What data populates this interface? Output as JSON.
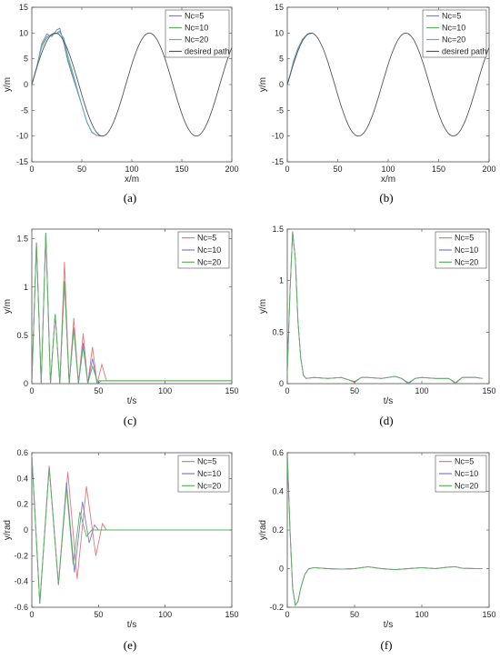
{
  "chart_data": [
    {
      "id": "a",
      "caption": "(a)",
      "type": "line",
      "xlabel": "x/m",
      "ylabel": "y/m",
      "xlim": [
        0,
        200
      ],
      "ylim": [
        -15,
        15
      ],
      "xticks": [
        0,
        50,
        100,
        150,
        200
      ],
      "yticks": [
        -15,
        -10,
        -5,
        0,
        5,
        10,
        15
      ],
      "legend_position": "top-right",
      "series": [
        {
          "name": "Nc=5",
          "color": "#7b7bd9",
          "x": [
            0,
            5,
            10,
            15,
            20,
            25,
            28,
            32,
            36,
            40,
            45,
            50,
            55,
            60,
            65,
            70
          ],
          "y": [
            0,
            3.5,
            8.0,
            9.8,
            9.3,
            10.6,
            10.9,
            8.0,
            4.5,
            2.0,
            -1.0,
            -4.0,
            -7.2,
            -9.2,
            -9.9,
            -10.0
          ]
        },
        {
          "name": "Nc=10",
          "color": "#5db35d",
          "x": [
            0,
            5,
            10,
            15,
            20,
            25,
            28,
            32,
            36,
            40,
            45,
            50,
            55,
            60,
            65,
            70
          ],
          "y": [
            0,
            3.5,
            7.6,
            9.3,
            9.6,
            10.0,
            10.4,
            8.6,
            5.0,
            2.5,
            -0.8,
            -4.0,
            -7.3,
            -9.3,
            -9.9,
            -10.0
          ]
        },
        {
          "name": "Nc=20",
          "color": "#66a8e0",
          "x": [
            0,
            5,
            10,
            15,
            20,
            25,
            28,
            32,
            36,
            40,
            45,
            50,
            55,
            60,
            65,
            70
          ],
          "y": [
            0,
            3.4,
            7.3,
            9.0,
            9.8,
            9.9,
            10.1,
            9.0,
            5.7,
            3.0,
            -0.5,
            -4.0,
            -7.2,
            -9.3,
            -9.9,
            -10.0
          ]
        },
        {
          "name": "desired path",
          "color": "#555555",
          "function": "sine",
          "amplitude": 10,
          "period": 94,
          "x_range": [
            0,
            200
          ]
        }
      ]
    },
    {
      "id": "b",
      "caption": "(b)",
      "type": "line",
      "xlabel": "x/m",
      "ylabel": "y/m",
      "xlim": [
        0,
        200
      ],
      "ylim": [
        -15,
        15
      ],
      "xticks": [
        0,
        50,
        100,
        150,
        200
      ],
      "yticks": [
        -15,
        -10,
        -5,
        0,
        5,
        10,
        15
      ],
      "legend_position": "top-right",
      "series": [
        {
          "name": "Nc=5",
          "color": "#7b7bd9",
          "x": [
            0,
            3,
            6,
            10,
            15,
            20,
            25
          ],
          "y": [
            0,
            2.0,
            4.5,
            6.8,
            8.8,
            9.8,
            10.0
          ]
        },
        {
          "name": "Nc=10",
          "color": "#5db35d",
          "x": [
            0,
            3,
            6,
            10,
            15,
            20,
            25
          ],
          "y": [
            0,
            1.9,
            4.4,
            6.7,
            8.7,
            9.8,
            10.0
          ]
        },
        {
          "name": "Nc=20",
          "color": "#66a8e0",
          "x": [
            0,
            3,
            6,
            10,
            15,
            20,
            25
          ],
          "y": [
            0,
            1.8,
            4.3,
            6.6,
            8.6,
            9.7,
            10.0
          ]
        },
        {
          "name": "desired path",
          "color": "#555555",
          "function": "sine",
          "amplitude": 10,
          "period": 94,
          "x_range": [
            0,
            200
          ]
        }
      ]
    },
    {
      "id": "c",
      "caption": "(c)",
      "type": "line",
      "xlabel": "t/s",
      "ylabel": "y/m",
      "xlim": [
        0,
        150
      ],
      "ylim": [
        0,
        1.6
      ],
      "xticks": [
        0,
        50,
        100,
        150
      ],
      "yticks": [
        0,
        0.5,
        1,
        1.5
      ],
      "legend_position": "top-right",
      "series": [
        {
          "name": "Nc=5",
          "color": "#e07a7a",
          "x": [
            0,
            3.5,
            7,
            10.5,
            14,
            17.5,
            21,
            24.5,
            28,
            31.5,
            35,
            38.5,
            42,
            45.5,
            49,
            52.5,
            56
          ],
          "y": [
            0,
            1.46,
            0,
            1.56,
            0,
            0.72,
            0,
            1.26,
            0,
            0.68,
            0,
            0.52,
            0,
            0.38,
            0,
            0.2,
            0.03
          ],
          "tail_value": 0.03,
          "tail_to": 150
        },
        {
          "name": "Nc=10",
          "color": "#7b7bd9",
          "x": [
            0,
            3.5,
            7,
            10.5,
            14,
            17.5,
            21,
            24.5,
            28,
            31.5,
            35,
            38.5,
            42,
            45.5,
            49,
            52.5
          ],
          "y": [
            0,
            1.46,
            0,
            1.56,
            0,
            0.72,
            0,
            1.06,
            0,
            0.58,
            0,
            0.42,
            0,
            0.26,
            0,
            0.03
          ],
          "tail_value": 0.03,
          "tail_to": 150
        },
        {
          "name": "Nc=20",
          "color": "#5db35d",
          "x": [
            0,
            3.5,
            7,
            10.5,
            14,
            17.5,
            21,
            24.5,
            28,
            31.5,
            35,
            38.5,
            42,
            45.5,
            49
          ],
          "y": [
            0,
            1.46,
            0,
            1.56,
            0,
            0.72,
            0,
            1.06,
            0,
            0.56,
            0,
            0.38,
            0,
            0.18,
            0.03
          ],
          "tail_value": 0.03,
          "tail_to": 150
        }
      ]
    },
    {
      "id": "d",
      "caption": "(d)",
      "type": "line",
      "xlabel": "t/s",
      "ylabel": "y/m",
      "xlim": [
        0,
        150
      ],
      "ylim": [
        0,
        1.5
      ],
      "xticks": [
        0,
        50,
        100,
        150
      ],
      "yticks": [
        0,
        0.5,
        1,
        1.5
      ],
      "legend_position": "top-right",
      "series": [
        {
          "name": "Nc=5",
          "color": "#e07a7a",
          "x": [
            0,
            2,
            4,
            6,
            8,
            10,
            12,
            14,
            20,
            30,
            40,
            45,
            50,
            55,
            60,
            70,
            80,
            85,
            90,
            95,
            100,
            110,
            120,
            125,
            130,
            140,
            145
          ],
          "y": [
            0.1,
            0.9,
            1.48,
            1.2,
            0.6,
            0.25,
            0.08,
            0.05,
            0.06,
            0.05,
            0.06,
            0.04,
            0.01,
            0.06,
            0.06,
            0.05,
            0.07,
            0.05,
            0.0,
            0.05,
            0.06,
            0.05,
            0.05,
            0.0,
            0.06,
            0.06,
            0.05
          ]
        },
        {
          "name": "Nc=10",
          "color": "#7b7bd9",
          "x": [
            0,
            2,
            4,
            6,
            8,
            10,
            12,
            14,
            20,
            30,
            40,
            45,
            50,
            55,
            60,
            70,
            80,
            85,
            90,
            95,
            100,
            110,
            120,
            125,
            130,
            140,
            145
          ],
          "y": [
            0.1,
            0.9,
            1.47,
            1.2,
            0.6,
            0.25,
            0.08,
            0.05,
            0.06,
            0.05,
            0.06,
            0.04,
            0.02,
            0.06,
            0.06,
            0.05,
            0.07,
            0.05,
            0.0,
            0.05,
            0.06,
            0.05,
            0.05,
            0.01,
            0.06,
            0.06,
            0.05
          ]
        },
        {
          "name": "Nc=20",
          "color": "#5db35d",
          "x": [
            0,
            2,
            4,
            6,
            8,
            10,
            12,
            14,
            20,
            30,
            40,
            45,
            50,
            55,
            60,
            70,
            80,
            85,
            90,
            95,
            100,
            110,
            120,
            125,
            130,
            140,
            145
          ],
          "y": [
            0.1,
            0.9,
            1.47,
            1.2,
            0.6,
            0.25,
            0.08,
            0.05,
            0.06,
            0.05,
            0.06,
            0.04,
            0.02,
            0.06,
            0.06,
            0.05,
            0.07,
            0.05,
            0.01,
            0.05,
            0.06,
            0.05,
            0.05,
            0.01,
            0.06,
            0.06,
            0.05
          ]
        }
      ]
    },
    {
      "id": "e",
      "caption": "(e)",
      "type": "line",
      "xlabel": "t/s",
      "ylabel": "y/rad",
      "xlim": [
        0,
        150
      ],
      "ylim": [
        -0.6,
        0.6
      ],
      "xticks": [
        0,
        50,
        100,
        150
      ],
      "yticks": [
        -0.6,
        -0.4,
        -0.2,
        0,
        0.2,
        0.4,
        0.6
      ],
      "legend_position": "top-right",
      "series": [
        {
          "name": "Nc=5",
          "color": "#e07a7a",
          "x": [
            0,
            6,
            13,
            20,
            27,
            34,
            41,
            48,
            53,
            56
          ],
          "y": [
            0.58,
            -0.57,
            0.5,
            -0.43,
            0.45,
            -0.38,
            0.34,
            -0.2,
            0.05,
            0
          ],
          "tail_value": 0,
          "tail_to": 150
        },
        {
          "name": "Nc=10",
          "color": "#7b7bd9",
          "x": [
            0,
            6,
            13,
            20,
            26,
            32,
            38,
            43,
            47,
            50
          ],
          "y": [
            0.58,
            -0.57,
            0.49,
            -0.42,
            0.37,
            -0.33,
            0.22,
            -0.1,
            0.04,
            0
          ],
          "tail_value": 0,
          "tail_to": 150
        },
        {
          "name": "Nc=20",
          "color": "#5db35d",
          "x": [
            0,
            6,
            13,
            20,
            26,
            31,
            36,
            41,
            45
          ],
          "y": [
            0.58,
            -0.57,
            0.48,
            -0.42,
            0.33,
            -0.27,
            0.14,
            -0.05,
            0
          ],
          "tail_value": 0,
          "tail_to": 150
        }
      ]
    },
    {
      "id": "f",
      "caption": "(f)",
      "type": "line",
      "xlabel": "t/s",
      "ylabel": "y/rad",
      "xlim": [
        0,
        150
      ],
      "ylim": [
        -0.2,
        0.6
      ],
      "xticks": [
        0,
        50,
        100,
        150
      ],
      "yticks": [
        -0.2,
        0,
        0.2,
        0.4,
        0.6
      ],
      "legend_position": "top-right",
      "series": [
        {
          "name": "Nc=5",
          "color": "#e07a7a",
          "x": [
            0,
            2,
            4,
            6,
            8,
            10,
            13,
            16,
            20,
            30,
            40,
            50,
            60,
            70,
            80,
            90,
            100,
            110,
            120,
            125,
            130,
            140,
            145
          ],
          "y": [
            0.6,
            0.2,
            -0.1,
            -0.19,
            -0.17,
            -0.1,
            -0.03,
            0.0,
            0.005,
            0.0,
            -0.003,
            0.0,
            0.01,
            0.0,
            -0.005,
            0.0,
            0.005,
            0.0,
            0.008,
            0.01,
            0.002,
            0.0,
            0.0
          ]
        },
        {
          "name": "Nc=10",
          "color": "#7b7bd9",
          "x": [
            0,
            2,
            4,
            6,
            8,
            10,
            13,
            16,
            20,
            30,
            40,
            50,
            60,
            70,
            80,
            90,
            100,
            110,
            120,
            125,
            130,
            140,
            145
          ],
          "y": [
            0.6,
            0.2,
            -0.1,
            -0.19,
            -0.17,
            -0.1,
            -0.03,
            0.0,
            0.005,
            0.0,
            -0.003,
            0.0,
            0.01,
            0.0,
            -0.005,
            0.0,
            0.005,
            0.0,
            0.008,
            0.01,
            0.002,
            0.0,
            0.0
          ]
        },
        {
          "name": "Nc=20",
          "color": "#5db35d",
          "x": [
            0,
            2,
            4,
            6,
            8,
            10,
            13,
            16,
            20,
            30,
            40,
            50,
            60,
            70,
            80,
            90,
            100,
            110,
            120,
            125,
            130,
            140,
            145
          ],
          "y": [
            0.6,
            0.2,
            -0.1,
            -0.19,
            -0.17,
            -0.1,
            -0.03,
            0.0,
            0.005,
            0.0,
            -0.003,
            0.0,
            0.01,
            0.0,
            -0.005,
            0.0,
            0.005,
            0.0,
            0.008,
            0.01,
            0.002,
            0.0,
            0.0
          ]
        }
      ]
    }
  ]
}
